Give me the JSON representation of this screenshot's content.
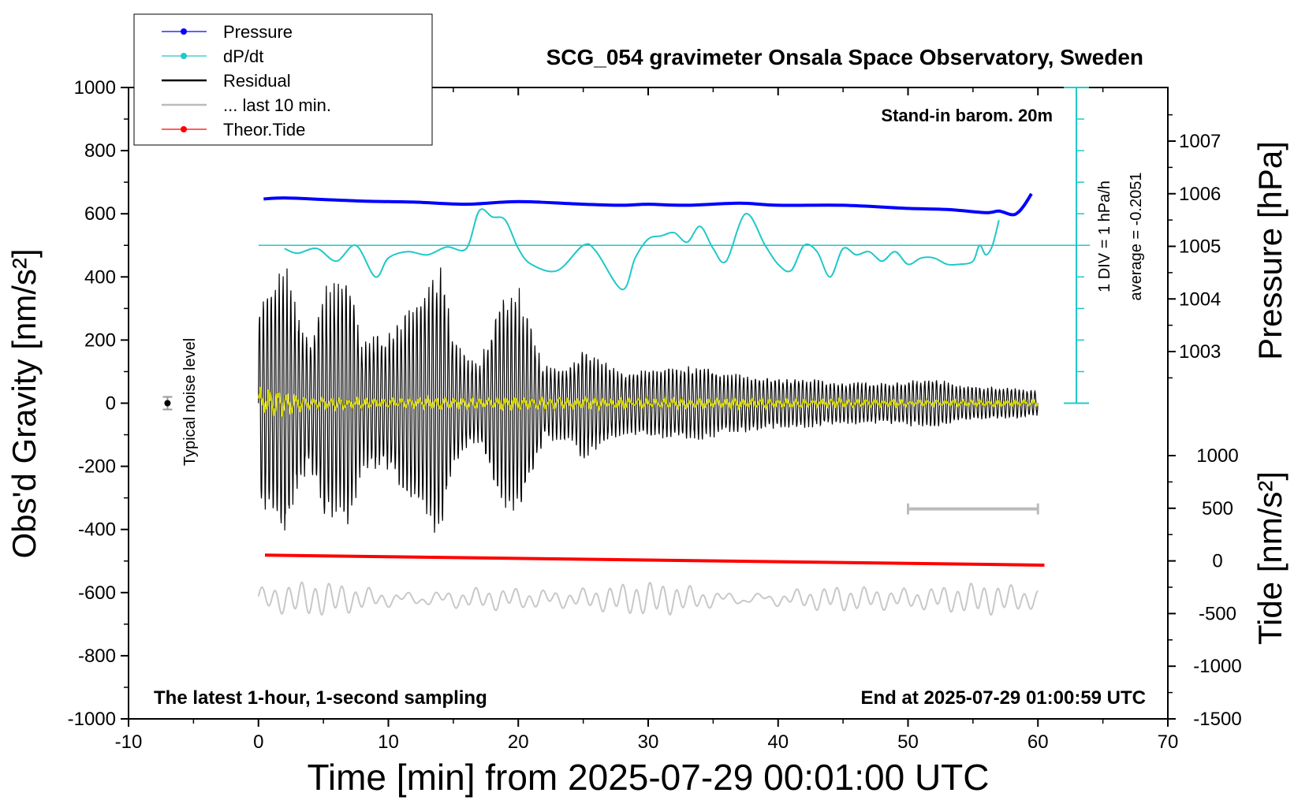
{
  "chart_data": {
    "type": "line",
    "title": "SCG_054 gravimeter Onsala Space Observatory, Sweden",
    "xlabel": "Time [min] from 2025-07-29 00:01:00 UTC",
    "ylabel_left": "Obs'd Gravity [nm/s²]",
    "ylabel_pressure": "Pressure [hPa]",
    "ylabel_tide": "Tide [nm/s²]",
    "xlim": [
      -10,
      70
    ],
    "ylim": [
      -1000,
      1000
    ],
    "x_ticks": [
      "-10",
      "0",
      "10",
      "20",
      "30",
      "40",
      "50",
      "60",
      "70"
    ],
    "y_ticks": [
      "1000",
      "800",
      "600",
      "400",
      "200",
      "0",
      "-200",
      "-400",
      "-600",
      "-800",
      "-1000"
    ],
    "pressure_ticks": [
      "1007",
      "1006",
      "1005",
      "1004",
      "1003"
    ],
    "pressure_tick_values": [
      1007,
      1006,
      1005,
      1004,
      1003
    ],
    "tide_ticks": [
      "1000",
      "500",
      "0",
      "-500",
      "-1000",
      "-1500"
    ],
    "tide_tick_values": [
      1000,
      500,
      0,
      -500,
      -1000,
      -1500
    ],
    "grid": false,
    "legend_position": "top-left",
    "legend": [
      {
        "label": "Pressure",
        "color": "#0000ff",
        "marker": "dot"
      },
      {
        "label": "dP/dt",
        "color": "#20c8c8",
        "marker": "dot"
      },
      {
        "label": "Residual",
        "color": "#000000",
        "marker": "line"
      },
      {
        "label": "... last 10 min.",
        "color": "#bbbbbb",
        "marker": "line"
      },
      {
        "label": "Theor.Tide",
        "color": "#ff0000",
        "marker": "dot"
      }
    ],
    "annotations": {
      "barometer": "Stand-in barom. 20m",
      "div_label": "1 DIV = 1 hPa/h",
      "average_label": "average = -0.2051",
      "noise_label": "Typical noise level",
      "bottom_left": "The latest 1-hour, 1-second sampling",
      "bottom_right": "End at 2025-07-29 01:00:59 UTC"
    },
    "series": [
      {
        "name": "Pressure",
        "color": "#0000ff",
        "axis": "pressure_hpa",
        "x": [
          0.4,
          2,
          5,
          8,
          12,
          16,
          20,
          25,
          28,
          30,
          33,
          37,
          40,
          45,
          50,
          53,
          56,
          57,
          58,
          58.5,
          59,
          59.5
        ],
        "y": [
          1005.9,
          1005.92,
          1005.89,
          1005.86,
          1005.84,
          1005.8,
          1005.85,
          1005.8,
          1005.78,
          1005.8,
          1005.78,
          1005.82,
          1005.78,
          1005.78,
          1005.72,
          1005.7,
          1005.64,
          1005.67,
          1005.6,
          1005.65,
          1005.8,
          1006.0
        ]
      },
      {
        "name": "dP/dt",
        "color": "#20c8c8",
        "axis": "gravity_position",
        "x": [
          2,
          3,
          4.5,
          6,
          7.5,
          9,
          10,
          11.5,
          13,
          14.5,
          16,
          17,
          18,
          19,
          20,
          21,
          23,
          25,
          26,
          28,
          29,
          30,
          31,
          32,
          33,
          34,
          35,
          36,
          37.5,
          39,
          40,
          41,
          42,
          43,
          44,
          45,
          46,
          47,
          48,
          49,
          50,
          51,
          52,
          53,
          54,
          55,
          55.5,
          56,
          56.5,
          57
        ],
        "y": [
          490,
          475,
          490,
          450,
          500,
          400,
          460,
          480,
          470,
          495,
          490,
          610,
          590,
          580,
          490,
          440,
          420,
          500,
          480,
          360,
          460,
          520,
          530,
          540,
          510,
          560,
          490,
          450,
          600,
          500,
          440,
          420,
          500,
          480,
          400,
          490,
          470,
          480,
          450,
          480,
          440,
          460,
          460,
          440,
          440,
          450,
          500,
          470,
          500,
          580
        ]
      },
      {
        "name": "Residual",
        "color": "#000000",
        "axis": "gravity",
        "envelope_x": [
          0,
          1,
          2,
          3,
          4,
          5,
          6,
          7,
          8,
          9,
          10,
          11,
          12,
          13,
          14,
          15,
          16,
          17,
          18,
          19,
          20,
          22,
          24,
          25,
          26,
          28,
          30,
          32,
          34,
          36,
          38,
          40,
          42,
          44,
          46,
          48,
          50,
          52,
          54,
          56,
          58,
          60
        ],
        "envelope_amplitude": [
          330,
          380,
          460,
          300,
          200,
          380,
          390,
          420,
          200,
          230,
          220,
          280,
          330,
          410,
          450,
          220,
          150,
          130,
          260,
          360,
          380,
          120,
          120,
          190,
          150,
          100,
          110,
          120,
          120,
          100,
          90,
          80,
          80,
          70,
          70,
          65,
          75,
          80,
          60,
          55,
          50,
          40
        ]
      },
      {
        "name": "Residual (smoothed)",
        "color": "#d4d400",
        "axis": "gravity",
        "envelope_x": [
          0,
          1,
          2,
          3,
          4,
          6,
          8,
          10,
          14,
          20,
          30,
          40,
          50,
          60
        ],
        "envelope_amplitude": [
          60,
          50,
          40,
          30,
          25,
          20,
          18,
          15,
          20,
          20,
          18,
          15,
          12,
          10
        ]
      },
      {
        "name": "... last 10 min.",
        "color": "#bbbbbb",
        "axis": "gravity",
        "x_range": [
          50,
          60
        ],
        "y": -335
      },
      {
        "name": "... last 10 min. (waveform)",
        "color": "#c8c8c8",
        "axis": "gravity",
        "x_range": [
          0,
          60
        ],
        "center": -620,
        "amplitude": 40
      },
      {
        "name": "Theor.Tide",
        "color": "#ff0000",
        "axis": "tide_nms2",
        "x": [
          0.5,
          60.5
        ],
        "y": [
          55,
          -40
        ]
      }
    ],
    "noise_marker": {
      "x": -7,
      "y": 0,
      "err": 20
    }
  }
}
